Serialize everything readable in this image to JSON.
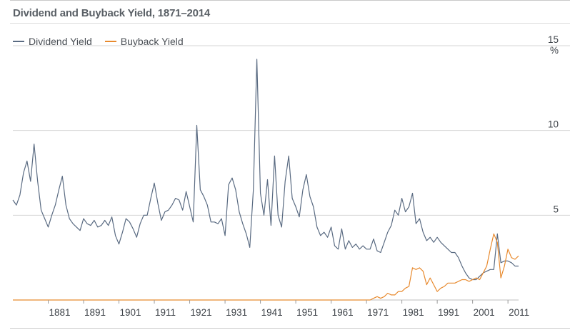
{
  "title": "Dividend and Buyback Yield, 1871–2014",
  "legend": {
    "dividend_label": "Dividend Yield",
    "buyback_label": "Buyback Yield"
  },
  "colors": {
    "dividend": "#5a6b82",
    "buyback": "#e88a2e",
    "grid": "#d6d6d6"
  },
  "chart_data": {
    "type": "line",
    "title": "Dividend and Buyback Yield, 1871–2014",
    "xlabel": "",
    "ylabel": "%",
    "xlim": [
      1871,
      2014
    ],
    "ylim": [
      0,
      15
    ],
    "x_ticks": [
      "1881",
      "1891",
      "1901",
      "1911",
      "1921",
      "1931",
      "1941",
      "1951",
      "1961",
      "1971",
      "1981",
      "1991",
      "2001",
      "2011"
    ],
    "y_ticks": [
      "15",
      "10",
      "5"
    ],
    "y_unit": "%",
    "grid": "horizontal",
    "legend_position": "top-left",
    "series": [
      {
        "name": "Dividend Yield",
        "x": [
          1871,
          1872,
          1873,
          1874,
          1875,
          1876,
          1877,
          1878,
          1879,
          1880,
          1881,
          1882,
          1883,
          1884,
          1885,
          1886,
          1887,
          1888,
          1889,
          1890,
          1891,
          1892,
          1893,
          1894,
          1895,
          1896,
          1897,
          1898,
          1899,
          1900,
          1901,
          1902,
          1903,
          1904,
          1905,
          1906,
          1907,
          1908,
          1909,
          1910,
          1911,
          1912,
          1913,
          1914,
          1915,
          1916,
          1917,
          1918,
          1919,
          1920,
          1921,
          1922,
          1923,
          1924,
          1925,
          1926,
          1927,
          1928,
          1929,
          1930,
          1931,
          1932,
          1933,
          1934,
          1935,
          1936,
          1937,
          1938,
          1939,
          1940,
          1941,
          1942,
          1943,
          1944,
          1945,
          1946,
          1947,
          1948,
          1949,
          1950,
          1951,
          1952,
          1953,
          1954,
          1955,
          1956,
          1957,
          1958,
          1959,
          1960,
          1961,
          1962,
          1963,
          1964,
          1965,
          1966,
          1967,
          1968,
          1969,
          1970,
          1971,
          1972,
          1973,
          1974,
          1975,
          1976,
          1977,
          1978,
          1979,
          1980,
          1981,
          1982,
          1983,
          1984,
          1985,
          1986,
          1987,
          1988,
          1989,
          1990,
          1991,
          1992,
          1993,
          1994,
          1995,
          1996,
          1997,
          1998,
          1999,
          2000,
          2001,
          2002,
          2003,
          2004,
          2005,
          2006,
          2007,
          2008,
          2009,
          2010,
          2011,
          2012,
          2013,
          2014
        ],
        "values": [
          5.9,
          5.6,
          6.2,
          7.5,
          8.2,
          7.0,
          9.2,
          7.0,
          5.3,
          4.8,
          4.3,
          5.0,
          5.6,
          6.5,
          7.3,
          5.6,
          4.8,
          4.5,
          4.3,
          4.1,
          4.8,
          4.5,
          4.4,
          4.7,
          4.3,
          4.4,
          4.7,
          4.4,
          4.9,
          3.8,
          3.3,
          4.0,
          4.8,
          4.6,
          4.2,
          3.7,
          4.5,
          5.0,
          5.0,
          6.0,
          6.9,
          5.7,
          4.7,
          5.2,
          5.3,
          5.6,
          6.0,
          5.9,
          5.3,
          6.4,
          5.5,
          4.6,
          10.3,
          6.5,
          6.1,
          5.6,
          4.6,
          4.6,
          4.5,
          4.8,
          3.8,
          6.8,
          7.2,
          6.5,
          5.2,
          4.5,
          3.9,
          3.1,
          6.5,
          14.2,
          6.3,
          5.0,
          7.1,
          4.4,
          8.5,
          5.0,
          4.3,
          7.0,
          8.5,
          6.0,
          5.5,
          4.9,
          6.5,
          7.4,
          6.1,
          5.5,
          4.3,
          3.8,
          4.0,
          3.7,
          4.3,
          3.2,
          3.0,
          4.2,
          3.0,
          3.5,
          3.1,
          3.3,
          3.0,
          3.2,
          3.0,
          3.0,
          3.6,
          2.9,
          2.8,
          3.4,
          4.0,
          4.4,
          5.3,
          5.0,
          6.0,
          5.2,
          5.5,
          6.3,
          4.5,
          4.8,
          4.0,
          3.5,
          3.7,
          3.4,
          3.7,
          3.4,
          3.2,
          3.0,
          2.8,
          2.8,
          2.5,
          2.0,
          1.6,
          1.3,
          1.2,
          1.2,
          1.4,
          1.6,
          1.7,
          1.8,
          1.8,
          3.9,
          2.2,
          2.3,
          2.3,
          2.2,
          2.0,
          2.0
        ]
      },
      {
        "name": "Buyback Yield",
        "x": [
          1871,
          1972,
          1973,
          1974,
          1975,
          1976,
          1977,
          1978,
          1979,
          1980,
          1981,
          1982,
          1983,
          1984,
          1985,
          1986,
          1987,
          1988,
          1989,
          1990,
          1991,
          1992,
          1993,
          1994,
          1995,
          1996,
          1997,
          1998,
          1999,
          2000,
          2001,
          2002,
          2003,
          2004,
          2005,
          2006,
          2007,
          2008,
          2009,
          2010,
          2011,
          2012,
          2013,
          2014
        ],
        "values": [
          0.0,
          0.0,
          0.1,
          0.2,
          0.1,
          0.2,
          0.4,
          0.3,
          0.3,
          0.5,
          0.5,
          0.7,
          0.8,
          1.9,
          1.8,
          1.9,
          1.7,
          0.9,
          1.3,
          0.9,
          0.5,
          0.7,
          0.8,
          1.0,
          1.0,
          1.0,
          1.1,
          1.2,
          1.2,
          1.1,
          1.2,
          1.3,
          1.2,
          1.6,
          2.0,
          3.0,
          3.9,
          3.4,
          1.3,
          2.0,
          3.0,
          2.5,
          2.4,
          2.6
        ]
      }
    ]
  }
}
